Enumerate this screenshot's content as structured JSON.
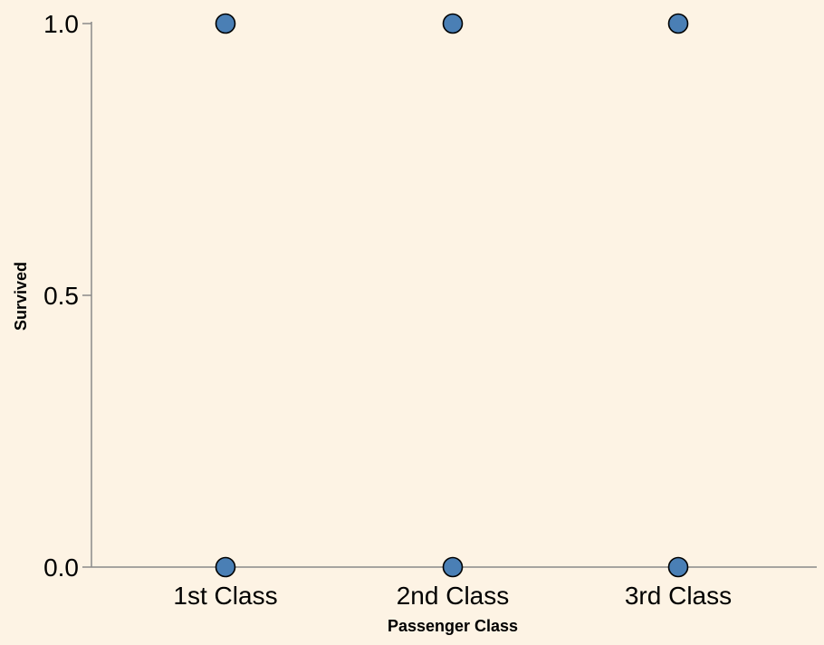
{
  "chart_data": {
    "type": "scatter",
    "xlabel": "Passenger Class",
    "ylabel": "Survived",
    "categories": [
      "1st Class",
      "2nd Class",
      "3rd Class"
    ],
    "yticks": [
      "0.0",
      "0.5",
      "1.0"
    ],
    "ylim": [
      0,
      1
    ],
    "grid": false,
    "points": [
      {
        "x": "1st Class",
        "y": 1
      },
      {
        "x": "2nd Class",
        "y": 1
      },
      {
        "x": "3rd Class",
        "y": 1
      },
      {
        "x": "1st Class",
        "y": 0
      },
      {
        "x": "2nd Class",
        "y": 0
      },
      {
        "x": "3rd Class",
        "y": 0
      }
    ],
    "colors": {
      "background": "#fdf3e4",
      "point_fill": "#4a7fb5",
      "point_stroke": "#000000",
      "axis": "#8a8a8a"
    }
  }
}
